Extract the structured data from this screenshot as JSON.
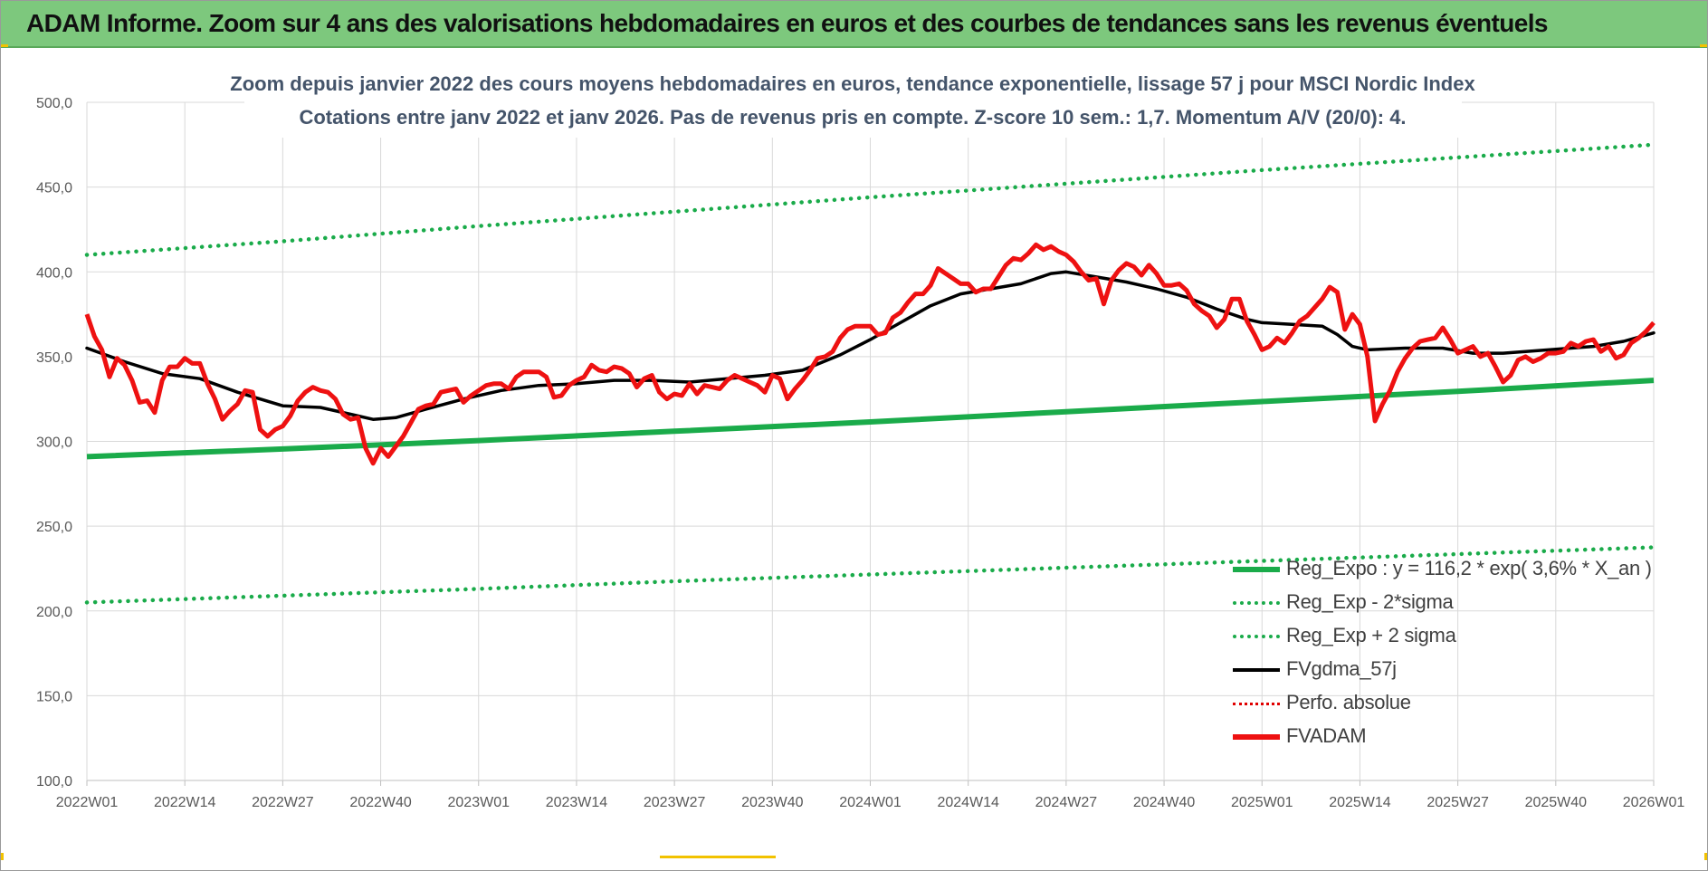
{
  "banner_title": "ADAM Informe. Zoom sur 4 ans des valorisations hebdomadaires en euros et des courbes de tendances sans les revenus éventuels",
  "colors": {
    "banner": "#7dc87d",
    "reg_expo": "#1aab4a",
    "band": "#1aab4a",
    "fvgdma": "#000000",
    "perfo": "#e00000",
    "fvadam": "#ee1111",
    "accent_corner": "#f2c200"
  },
  "chart_data": {
    "type": "line",
    "title_line1": "Zoom depuis janvier 2022 des cours moyens hebdomadaires en euros, tendance exponentielle, lissage 57 j pour MSCI Nordic Index",
    "title_line2": "Cotations entre janv 2022 et janv 2026. Pas de revenus pris en compte. Z-score 10 sem.: 1,7. Momentum A/V (20/0): 4.",
    "ylim": [
      100,
      500
    ],
    "yticks": [
      "100,0",
      "150,0",
      "200,0",
      "250,0",
      "300,0",
      "350,0",
      "400,0",
      "450,0",
      "500,0"
    ],
    "x_tick_labels": [
      "2022W01",
      "2022W14",
      "2022W27",
      "2022W40",
      "2023W01",
      "2023W14",
      "2023W27",
      "2023W40",
      "2024W01",
      "2024W14",
      "2024W27",
      "2024W40",
      "2025W01",
      "2025W14",
      "2025W27",
      "2025W40",
      "2026W01"
    ],
    "x_tick_weeks": [
      0,
      13,
      26,
      39,
      52,
      65,
      78,
      91,
      104,
      117,
      130,
      143,
      156,
      169,
      182,
      195,
      208
    ],
    "grid": true,
    "legend_position": "bottom-right",
    "series": [
      {
        "name": "Reg_Expo : y = 116,2 * exp( 3,6% *  X_an )",
        "style": "solid-thick",
        "color_key": "reg_expo",
        "points": [
          [
            0,
            291
          ],
          [
            26,
            295.5
          ],
          [
            52,
            300.5
          ],
          [
            78,
            306
          ],
          [
            104,
            311.5
          ],
          [
            130,
            317.5
          ],
          [
            156,
            323.5
          ],
          [
            182,
            329.5
          ],
          [
            208,
            336
          ]
        ]
      },
      {
        "name": "Reg_Exp - 2*sigma",
        "style": "dotted",
        "color_key": "band",
        "points": [
          [
            0,
            205
          ],
          [
            26,
            209
          ],
          [
            52,
            213
          ],
          [
            78,
            217.5
          ],
          [
            104,
            221.5
          ],
          [
            130,
            225.5
          ],
          [
            156,
            229.5
          ],
          [
            182,
            233.5
          ],
          [
            208,
            237.5
          ]
        ]
      },
      {
        "name": "Reg_Exp + 2 sigma",
        "style": "dotted",
        "color_key": "band",
        "points": [
          [
            0,
            410
          ],
          [
            26,
            418
          ],
          [
            52,
            427
          ],
          [
            78,
            435.5
          ],
          [
            104,
            444
          ],
          [
            130,
            452
          ],
          [
            156,
            460
          ],
          [
            182,
            467.5
          ],
          [
            208,
            475
          ]
        ]
      },
      {
        "name": "FVgdma_57j",
        "style": "solid",
        "color_key": "fvgdma",
        "points": [
          [
            0,
            355
          ],
          [
            5,
            347
          ],
          [
            10,
            340
          ],
          [
            15,
            337
          ],
          [
            20,
            329
          ],
          [
            26,
            321
          ],
          [
            31,
            320
          ],
          [
            35,
            316
          ],
          [
            38,
            313
          ],
          [
            41,
            314
          ],
          [
            45,
            319
          ],
          [
            50,
            325
          ],
          [
            55,
            330
          ],
          [
            60,
            333
          ],
          [
            65,
            334
          ],
          [
            70,
            336
          ],
          [
            75,
            336
          ],
          [
            80,
            335
          ],
          [
            85,
            337
          ],
          [
            90,
            339
          ],
          [
            95,
            342
          ],
          [
            100,
            351
          ],
          [
            104,
            360
          ],
          [
            108,
            370
          ],
          [
            112,
            380
          ],
          [
            116,
            387
          ],
          [
            120,
            390
          ],
          [
            124,
            393
          ],
          [
            128,
            399
          ],
          [
            130,
            400
          ],
          [
            134,
            397
          ],
          [
            138,
            394
          ],
          [
            142,
            390
          ],
          [
            146,
            385
          ],
          [
            150,
            378
          ],
          [
            154,
            372
          ],
          [
            156,
            370
          ],
          [
            160,
            369
          ],
          [
            164,
            368
          ],
          [
            166,
            363
          ],
          [
            168,
            356
          ],
          [
            170,
            354
          ],
          [
            175,
            355
          ],
          [
            180,
            355
          ],
          [
            184,
            352
          ],
          [
            188,
            352
          ],
          [
            194,
            354
          ],
          [
            200,
            356
          ],
          [
            204,
            359
          ],
          [
            208,
            364
          ]
        ]
      },
      {
        "name": "Perfo. absolue",
        "style": "dotted",
        "color_key": "perfo",
        "points": []
      },
      {
        "name": "FVADAM",
        "style": "solid-thick",
        "color_key": "fvadam",
        "points": [
          [
            0,
            375
          ],
          [
            1,
            362
          ],
          [
            2,
            354
          ],
          [
            3,
            338
          ],
          [
            4,
            349
          ],
          [
            5,
            345
          ],
          [
            6,
            336
          ],
          [
            7,
            323
          ],
          [
            8,
            324
          ],
          [
            9,
            317
          ],
          [
            10,
            336
          ],
          [
            11,
            344
          ],
          [
            12,
            344
          ],
          [
            13,
            349
          ],
          [
            14,
            346
          ],
          [
            15,
            346
          ],
          [
            16,
            334
          ],
          [
            17,
            325
          ],
          [
            18,
            313
          ],
          [
            19,
            318
          ],
          [
            20,
            322
          ],
          [
            21,
            330
          ],
          [
            22,
            329
          ],
          [
            23,
            307
          ],
          [
            24,
            303
          ],
          [
            25,
            307
          ],
          [
            26,
            309
          ],
          [
            27,
            315
          ],
          [
            28,
            324
          ],
          [
            29,
            329
          ],
          [
            30,
            332
          ],
          [
            31,
            330
          ],
          [
            32,
            329
          ],
          [
            33,
            325
          ],
          [
            34,
            316
          ],
          [
            35,
            313
          ],
          [
            36,
            314
          ],
          [
            37,
            296
          ],
          [
            38,
            287
          ],
          [
            39,
            296
          ],
          [
            40,
            291
          ],
          [
            41,
            297
          ],
          [
            42,
            303
          ],
          [
            43,
            311
          ],
          [
            44,
            319
          ],
          [
            45,
            321
          ],
          [
            46,
            322
          ],
          [
            47,
            329
          ],
          [
            48,
            330
          ],
          [
            49,
            331
          ],
          [
            50,
            323
          ],
          [
            51,
            327
          ],
          [
            52,
            330
          ],
          [
            53,
            333
          ],
          [
            54,
            334
          ],
          [
            55,
            334
          ],
          [
            56,
            331
          ],
          [
            57,
            338
          ],
          [
            58,
            341
          ],
          [
            59,
            341
          ],
          [
            60,
            341
          ],
          [
            61,
            338
          ],
          [
            62,
            326
          ],
          [
            63,
            327
          ],
          [
            64,
            333
          ],
          [
            65,
            336
          ],
          [
            66,
            338
          ],
          [
            67,
            345
          ],
          [
            68,
            342
          ],
          [
            69,
            341
          ],
          [
            70,
            344
          ],
          [
            71,
            343
          ],
          [
            72,
            340
          ],
          [
            73,
            332
          ],
          [
            74,
            337
          ],
          [
            75,
            339
          ],
          [
            76,
            329
          ],
          [
            77,
            325
          ],
          [
            78,
            328
          ],
          [
            79,
            327
          ],
          [
            80,
            334
          ],
          [
            81,
            328
          ],
          [
            82,
            333
          ],
          [
            83,
            332
          ],
          [
            84,
            331
          ],
          [
            85,
            336
          ],
          [
            86,
            339
          ],
          [
            87,
            337
          ],
          [
            88,
            335
          ],
          [
            89,
            333
          ],
          [
            90,
            329
          ],
          [
            91,
            339
          ],
          [
            92,
            337
          ],
          [
            93,
            325
          ],
          [
            94,
            331
          ],
          [
            95,
            336
          ],
          [
            96,
            342
          ],
          [
            97,
            349
          ],
          [
            98,
            350
          ],
          [
            99,
            353
          ],
          [
            100,
            361
          ],
          [
            101,
            366
          ],
          [
            102,
            368
          ],
          [
            103,
            368
          ],
          [
            104,
            368
          ],
          [
            105,
            363
          ],
          [
            106,
            364
          ],
          [
            107,
            373
          ],
          [
            108,
            376
          ],
          [
            109,
            382
          ],
          [
            110,
            387
          ],
          [
            111,
            387
          ],
          [
            112,
            392
          ],
          [
            113,
            402
          ],
          [
            114,
            399
          ],
          [
            115,
            396
          ],
          [
            116,
            393
          ],
          [
            117,
            393
          ],
          [
            118,
            388
          ],
          [
            119,
            390
          ],
          [
            120,
            390
          ],
          [
            121,
            397
          ],
          [
            122,
            404
          ],
          [
            123,
            408
          ],
          [
            124,
            407
          ],
          [
            125,
            411
          ],
          [
            126,
            416
          ],
          [
            127,
            413
          ],
          [
            128,
            415
          ],
          [
            129,
            412
          ],
          [
            130,
            410
          ],
          [
            131,
            406
          ],
          [
            132,
            400
          ],
          [
            133,
            395
          ],
          [
            134,
            396
          ],
          [
            135,
            381
          ],
          [
            136,
            395
          ],
          [
            137,
            401
          ],
          [
            138,
            405
          ],
          [
            139,
            403
          ],
          [
            140,
            398
          ],
          [
            141,
            404
          ],
          [
            142,
            399
          ],
          [
            143,
            392
          ],
          [
            144,
            392
          ],
          [
            145,
            393
          ],
          [
            146,
            389
          ],
          [
            147,
            381
          ],
          [
            148,
            377
          ],
          [
            149,
            374
          ],
          [
            150,
            367
          ],
          [
            151,
            372
          ],
          [
            152,
            384
          ],
          [
            153,
            384
          ],
          [
            154,
            371
          ],
          [
            155,
            363
          ],
          [
            156,
            354
          ],
          [
            157,
            356
          ],
          [
            158,
            361
          ],
          [
            159,
            358
          ],
          [
            160,
            364
          ],
          [
            161,
            371
          ],
          [
            162,
            374
          ],
          [
            163,
            379
          ],
          [
            164,
            384
          ],
          [
            165,
            391
          ],
          [
            166,
            388
          ],
          [
            167,
            366
          ],
          [
            168,
            375
          ],
          [
            169,
            369
          ],
          [
            170,
            350
          ],
          [
            171,
            312
          ],
          [
            172,
            322
          ],
          [
            173,
            330
          ],
          [
            174,
            341
          ],
          [
            175,
            349
          ],
          [
            176,
            355
          ],
          [
            177,
            359
          ],
          [
            178,
            360
          ],
          [
            179,
            361
          ],
          [
            180,
            367
          ],
          [
            181,
            360
          ],
          [
            182,
            352
          ],
          [
            183,
            354
          ],
          [
            184,
            356
          ],
          [
            185,
            350
          ],
          [
            186,
            352
          ],
          [
            187,
            344
          ],
          [
            188,
            335
          ],
          [
            189,
            339
          ],
          [
            190,
            348
          ],
          [
            191,
            350
          ],
          [
            192,
            347
          ],
          [
            193,
            349
          ],
          [
            194,
            352
          ],
          [
            195,
            352
          ],
          [
            196,
            353
          ],
          [
            197,
            358
          ],
          [
            198,
            356
          ],
          [
            199,
            359
          ],
          [
            200,
            360
          ],
          [
            201,
            353
          ],
          [
            202,
            356
          ],
          [
            203,
            349
          ],
          [
            204,
            351
          ],
          [
            205,
            358
          ],
          [
            206,
            361
          ],
          [
            207,
            365
          ],
          [
            208,
            370
          ]
        ]
      }
    ]
  }
}
